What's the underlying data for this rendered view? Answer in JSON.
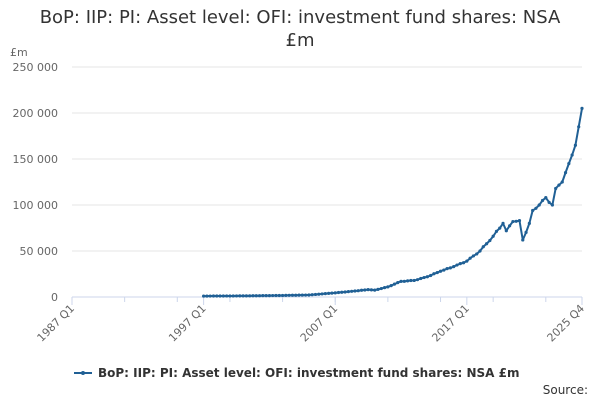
{
  "title_line1": "BoP: IIP: PI: Asset level: OFI: investment fund shares: NSA",
  "title_line2": "£m",
  "source_label": "Source:",
  "colors": {
    "series": "#206095",
    "grid": "#e6e6e6",
    "axis": "#ccd6eb",
    "text": "#666666"
  },
  "chart_data": {
    "type": "line",
    "title": "BoP: IIP: PI: Asset level: OFI: investment fund shares: NSA £m",
    "ylabel": "£m",
    "xlabel": "",
    "ylim": [
      0,
      250000
    ],
    "y_ticks": [
      0,
      50000,
      100000,
      150000,
      200000,
      250000
    ],
    "y_tick_labels": [
      "0",
      "50 000",
      "100 000",
      "150 000",
      "200 000",
      "250 000"
    ],
    "x_tick_labels": [
      "1987 Q1",
      "1997 Q1",
      "2007 Q1",
      "2017 Q1",
      "2025 Q4"
    ],
    "x_range_quarters": {
      "start": "1987 Q1",
      "end": "2025 Q4"
    },
    "grid": true,
    "legend": "bottom",
    "series": [
      {
        "name": "BoP: IIP: PI: Asset level: OFI: investment fund shares: NSA £m",
        "start": "1997 Q1",
        "anchors": [
          [
            "1997 Q1",
            1000
          ],
          [
            "2000 Q1",
            1200
          ],
          [
            "2003 Q1",
            1700
          ],
          [
            "2005 Q1",
            2200
          ],
          [
            "2007 Q1",
            4500
          ],
          [
            "2008 Q3",
            6500
          ],
          [
            "2009 Q3",
            8000
          ],
          [
            "2010 Q1",
            7500
          ],
          [
            "2011 Q1",
            11000
          ],
          [
            "2012 Q1",
            17000
          ],
          [
            "2013 Q1",
            18000
          ],
          [
            "2014 Q1",
            22000
          ],
          [
            "2015 Q1",
            28000
          ],
          [
            "2016 Q1",
            33000
          ],
          [
            "2017 Q1",
            39000
          ],
          [
            "2018 Q1",
            50000
          ],
          [
            "2019 Q1",
            66000
          ],
          [
            "2019 Q4",
            80000
          ],
          [
            "2020 Q1",
            72000
          ],
          [
            "2020 Q3",
            82000
          ],
          [
            "2021 Q1",
            83000
          ],
          [
            "2021 Q2",
            62000
          ],
          [
            "2021 Q4",
            80000
          ],
          [
            "2022 Q1",
            94000
          ],
          [
            "2022 Q3",
            100000
          ],
          [
            "2023 Q1",
            108000
          ],
          [
            "2023 Q3",
            100000
          ],
          [
            "2023 Q4",
            118000
          ],
          [
            "2024 Q2",
            125000
          ],
          [
            "2024 Q4",
            145000
          ],
          [
            "2025 Q2",
            165000
          ],
          [
            "2025 Q3",
            185000
          ],
          [
            "2025 Q4",
            205000
          ]
        ]
      }
    ]
  }
}
